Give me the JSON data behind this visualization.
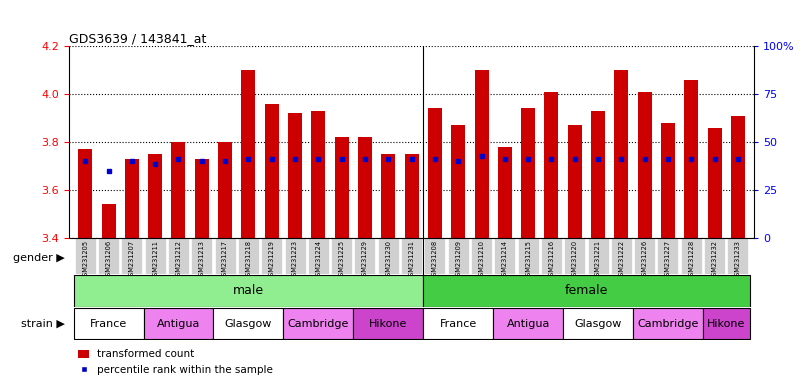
{
  "title": "GDS3639 / 143841_at",
  "samples": [
    "GSM231205",
    "GSM231206",
    "GSM231207",
    "GSM231211",
    "GSM231212",
    "GSM231213",
    "GSM231217",
    "GSM231218",
    "GSM231219",
    "GSM231223",
    "GSM231224",
    "GSM231225",
    "GSM231229",
    "GSM231230",
    "GSM231231",
    "GSM231208",
    "GSM231209",
    "GSM231210",
    "GSM231214",
    "GSM231215",
    "GSM231216",
    "GSM231220",
    "GSM231221",
    "GSM231222",
    "GSM231226",
    "GSM231227",
    "GSM231228",
    "GSM231232",
    "GSM231233"
  ],
  "red_values": [
    3.77,
    3.54,
    3.73,
    3.75,
    3.8,
    3.73,
    3.8,
    4.1,
    3.96,
    3.92,
    3.93,
    3.82,
    3.82,
    3.75,
    3.75,
    3.94,
    3.87,
    4.1,
    3.78,
    3.94,
    4.01,
    3.87,
    3.93,
    4.1,
    4.01,
    3.88,
    4.06,
    3.86,
    3.91
  ],
  "blue_values": [
    3.72,
    3.68,
    3.72,
    3.71,
    3.73,
    3.72,
    3.72,
    3.73,
    3.73,
    3.73,
    3.73,
    3.73,
    3.73,
    3.73,
    3.73,
    3.73,
    3.72,
    3.74,
    3.73,
    3.73,
    3.73,
    3.73,
    3.73,
    3.73,
    3.73,
    3.73,
    3.73,
    3.73,
    3.73
  ],
  "ymin": 3.4,
  "ymax": 4.2,
  "yticks_left": [
    3.4,
    3.6,
    3.8,
    4.0,
    4.2
  ],
  "yticks_right": [
    0,
    25,
    50,
    75,
    100
  ],
  "bar_color": "#cc0000",
  "blue_color": "#0000cc",
  "gender": [
    "male",
    "male",
    "male",
    "male",
    "male",
    "male",
    "male",
    "male",
    "male",
    "male",
    "male",
    "male",
    "male",
    "male",
    "male",
    "female",
    "female",
    "female",
    "female",
    "female",
    "female",
    "female",
    "female",
    "female",
    "female",
    "female",
    "female",
    "female",
    "female"
  ],
  "strain": [
    "France",
    "France",
    "France",
    "Antigua",
    "Antigua",
    "Antigua",
    "Glasgow",
    "Glasgow",
    "Glasgow",
    "Cambridge",
    "Cambridge",
    "Cambridge",
    "Hikone",
    "Hikone",
    "Hikone",
    "France",
    "France",
    "France",
    "Antigua",
    "Antigua",
    "Antigua",
    "Glasgow",
    "Glasgow",
    "Glasgow",
    "Cambridge",
    "Cambridge",
    "Cambridge",
    "Hikone",
    "Hikone"
  ],
  "strain_colors": {
    "France": "#ffffff",
    "Antigua": "#ee82ee",
    "Glasgow": "#ffffff",
    "Cambridge": "#ee82ee",
    "Hikone": "#cc44cc"
  },
  "gender_color_male": "#90ee90",
  "gender_color_female": "#44cc44",
  "tick_bg_color": "#d0d0d0",
  "legend_items": [
    "transformed count",
    "percentile rank within the sample"
  ]
}
